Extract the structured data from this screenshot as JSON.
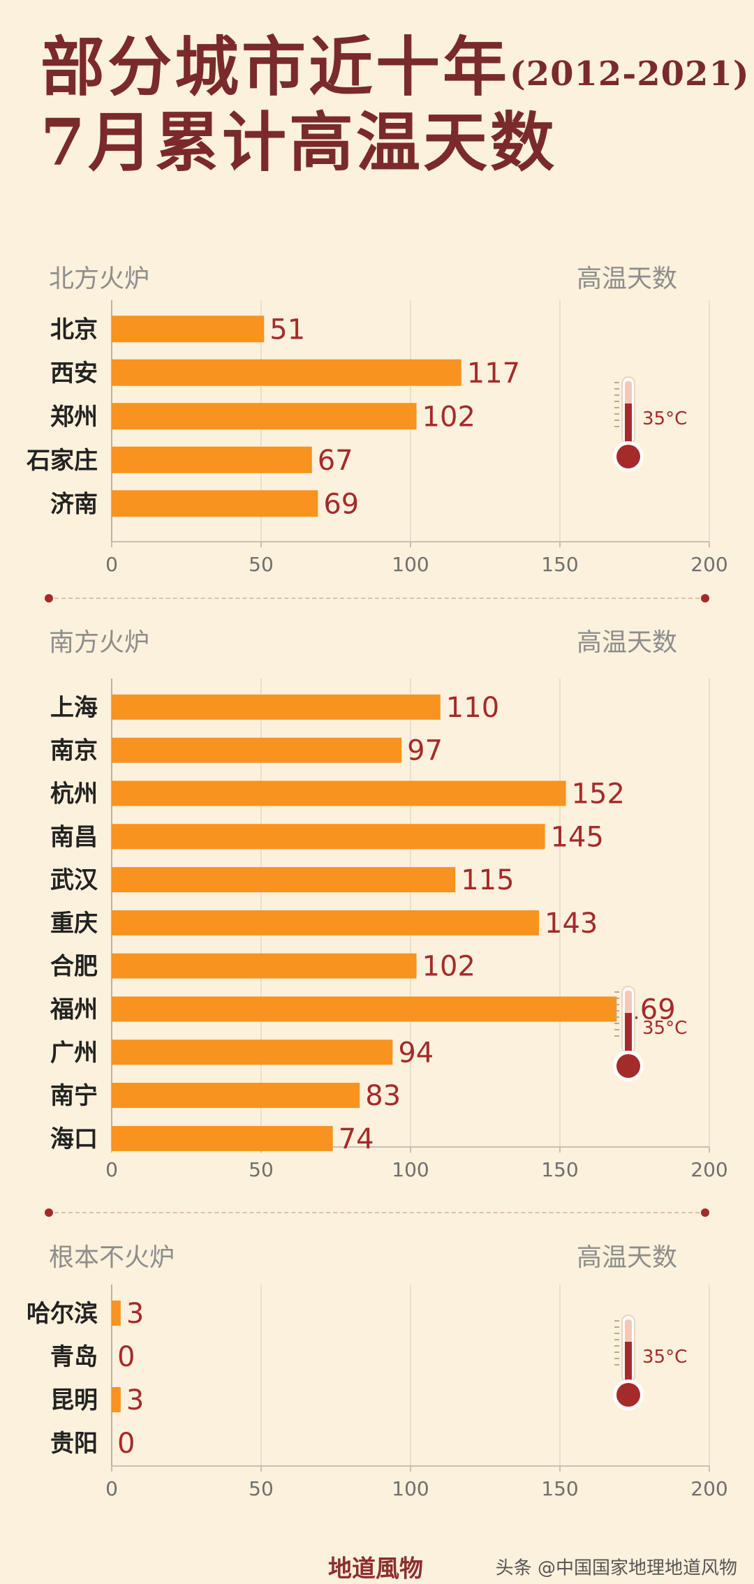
{
  "title": {
    "line1": "部分城市近十年",
    "years": "(2012-2021)",
    "line2": "7月累计高温天数"
  },
  "axis_caption": "高温天数",
  "thermometer_label": "35°C",
  "footer_brand": "地道風物",
  "watermark": "头条 @中国国家地理地道风物",
  "colors": {
    "bar": "#f7931e",
    "value": "#a52a2a",
    "title": "#7a2a2a",
    "label": "#8d8d8d",
    "background": "#fcf1dc"
  },
  "chart_data": [
    {
      "type": "bar",
      "orientation": "horizontal",
      "title": "北方火炉",
      "xlabel": "高温天数",
      "categories": [
        "北京",
        "西安",
        "郑州",
        "石家庄",
        "济南"
      ],
      "values": [
        51,
        117,
        102,
        67,
        69
      ],
      "xlim": [
        0,
        200
      ],
      "ticks": [
        0,
        50,
        100,
        150,
        200
      ],
      "grid": true
    },
    {
      "type": "bar",
      "orientation": "horizontal",
      "title": "南方火炉",
      "xlabel": "高温天数",
      "categories": [
        "上海",
        "南京",
        "杭州",
        "南昌",
        "武汉",
        "重庆",
        "合肥",
        "福州",
        "广州",
        "南宁",
        "海口"
      ],
      "values": [
        110,
        97,
        152,
        145,
        115,
        143,
        102,
        169,
        94,
        83,
        74
      ],
      "xlim": [
        0,
        200
      ],
      "ticks": [
        0,
        50,
        100,
        150,
        200
      ],
      "grid": true
    },
    {
      "type": "bar",
      "orientation": "horizontal",
      "title": "根本不火炉",
      "xlabel": "高温天数",
      "categories": [
        "哈尔滨",
        "青岛",
        "昆明",
        "贵阳"
      ],
      "values": [
        3,
        0,
        3,
        0
      ],
      "xlim": [
        0,
        200
      ],
      "ticks": [
        0,
        50,
        100,
        150,
        200
      ],
      "grid": true
    }
  ]
}
